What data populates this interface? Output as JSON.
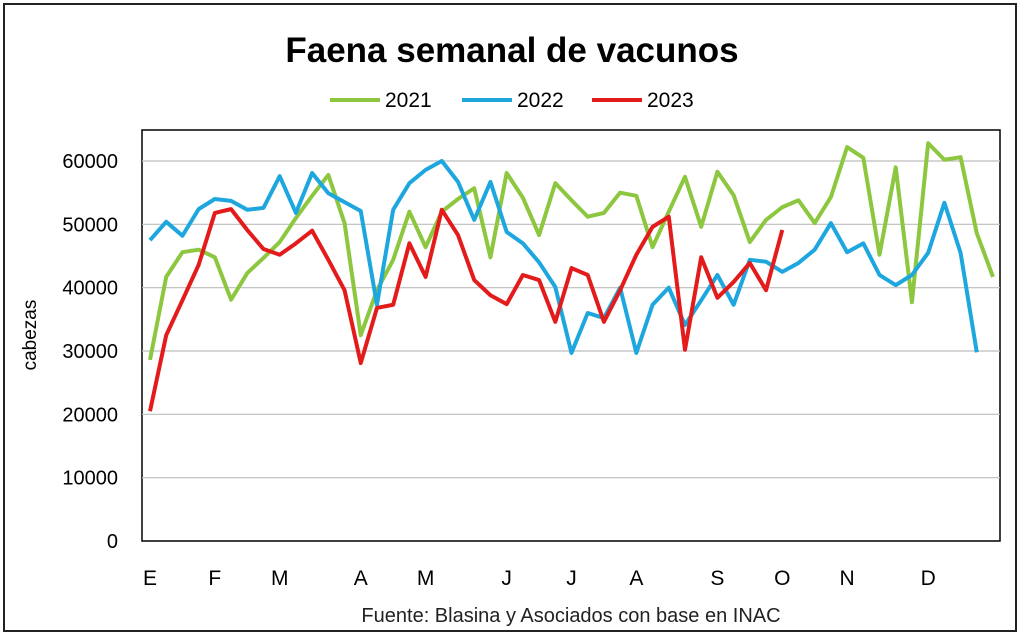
{
  "chart_data": {
    "type": "line",
    "title": "Faena semanal de vacunos",
    "xlabel": "",
    "ylabel": "cabezas",
    "source": "Fuente: Blasina y Asociados con base en INAC",
    "ylim": [
      0,
      60000
    ],
    "yticks": [
      0,
      10000,
      20000,
      30000,
      40000,
      50000,
      60000
    ],
    "grid": true,
    "legend_position": "top-center",
    "x_unit": "week",
    "x_count": 53,
    "month_ticks": [
      {
        "label": "E",
        "week": 1
      },
      {
        "label": "F",
        "week": 5
      },
      {
        "label": "M",
        "week": 9
      },
      {
        "label": "A",
        "week": 14
      },
      {
        "label": "M",
        "week": 18
      },
      {
        "label": "J",
        "week": 23
      },
      {
        "label": "J",
        "week": 27
      },
      {
        "label": "A",
        "week": 31
      },
      {
        "label": "S",
        "week": 36
      },
      {
        "label": "O",
        "week": 40
      },
      {
        "label": "N",
        "week": 44
      },
      {
        "label": "D",
        "week": 49
      }
    ],
    "series": [
      {
        "name": "2021",
        "color": "#8dc63f",
        "values": [
          28600,
          41700,
          45600,
          46000,
          44800,
          38100,
          42300,
          44700,
          47200,
          51000,
          54500,
          57800,
          50200,
          32500,
          39600,
          44400,
          52000,
          46400,
          52000,
          54000,
          55700,
          44800,
          58100,
          54200,
          48300,
          56500,
          53800,
          51200,
          51800,
          55000,
          54500,
          46400,
          52000,
          57500,
          49600,
          58300,
          54600,
          47200,
          50700,
          52700,
          53800,
          50200,
          54300,
          62200,
          60500,
          45200,
          59000,
          37700,
          62800,
          60200,
          60600,
          48600,
          41700
        ]
      },
      {
        "name": "2022",
        "color": "#1ea7de",
        "values": [
          47500,
          50400,
          48200,
          52400,
          54000,
          53700,
          52300,
          52600,
          57600,
          51800,
          58100,
          54900,
          53500,
          52100,
          37300,
          52300,
          56500,
          58600,
          60000,
          56700,
          50700,
          56700,
          48800,
          47000,
          44000,
          40100,
          29700,
          36000,
          35200,
          40000,
          29700,
          37300,
          40000,
          34100,
          38000,
          42000,
          37300,
          44400,
          44100,
          42500,
          43900,
          46000,
          50200,
          45600,
          47000,
          42000,
          40400,
          42000,
          45500,
          53400,
          45500,
          29800
        ]
      },
      {
        "name": "2023",
        "color": "#e31b1b",
        "values": [
          20500,
          32500,
          38000,
          43600,
          51800,
          52400,
          49100,
          46100,
          45200,
          47000,
          49000,
          44400,
          39600,
          28100,
          36800,
          37300,
          47000,
          41700,
          52300,
          48300,
          41200,
          38800,
          37400,
          42000,
          41200,
          34600,
          43100,
          42000,
          34600,
          39600,
          45200,
          49600,
          51200,
          30200,
          44800,
          38400,
          40900,
          43900,
          39600,
          49100
        ]
      }
    ]
  }
}
